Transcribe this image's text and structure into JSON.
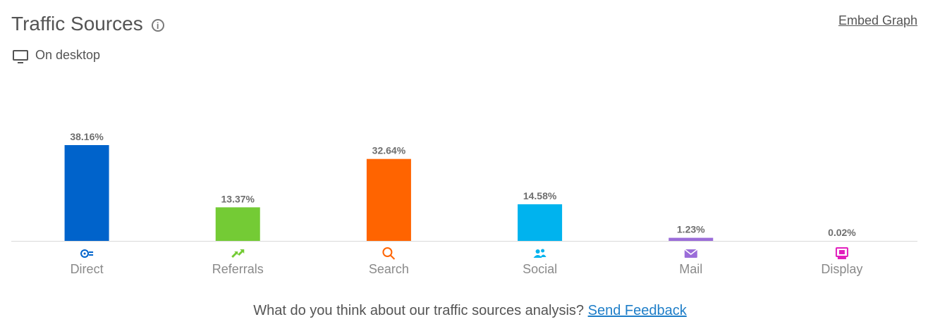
{
  "header": {
    "title": "Traffic Sources",
    "info_icon": "info-icon",
    "embed_label": "Embed Graph",
    "device_icon": "desktop-icon",
    "device_label": "On desktop"
  },
  "chart_data": {
    "type": "bar",
    "categories": [
      "Direct",
      "Referrals",
      "Search",
      "Social",
      "Mail",
      "Display"
    ],
    "values": [
      38.16,
      13.37,
      32.64,
      14.58,
      1.23,
      0.02
    ],
    "value_labels": [
      "38.16%",
      "13.37%",
      "32.64%",
      "14.58%",
      "1.23%",
      "0.02%"
    ],
    "colors": [
      "#0063cb",
      "#74cb35",
      "#ff6400",
      "#00b3ee",
      "#9b6dd9",
      "#e21fbd"
    ],
    "icons": [
      "direct-icon",
      "referrals-icon",
      "search-icon",
      "social-icon",
      "mail-icon",
      "display-icon"
    ],
    "title": "",
    "xlabel": "",
    "ylabel": "",
    "grid": false,
    "legend": "none"
  },
  "footer": {
    "question": "What do you think about our traffic sources analysis?",
    "link_label": "Send Feedback"
  }
}
